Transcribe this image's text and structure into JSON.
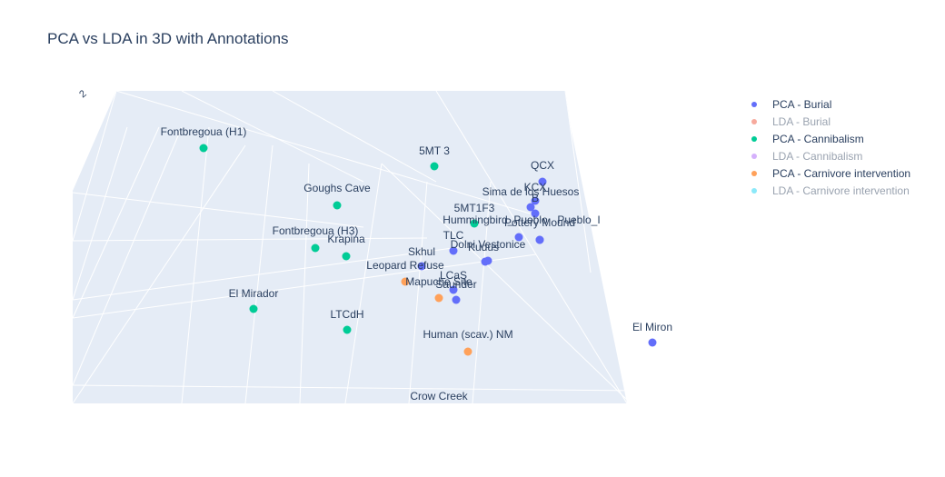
{
  "title": "PCA vs LDA in 3D with Annotations",
  "chart_data": {
    "type": "scatter",
    "title": "PCA vs LDA in 3D with Annotations",
    "axis_tick_visible": "2",
    "grid": true,
    "legend_placement": "top-right",
    "series": [
      {
        "name": "PCA - Burial",
        "color": "#636efa",
        "visible": true,
        "points": [
          {
            "label": "QCX"
          },
          {
            "label": "KCX"
          },
          {
            "label": "Sima de los Huesos"
          },
          {
            "label": "B"
          },
          {
            "label": "Hummingbird_Pueblo"
          },
          {
            "label": "Pueblo_I"
          },
          {
            "label": "Pottery Mound"
          },
          {
            "label": "TLC"
          },
          {
            "label": "Kudus"
          },
          {
            "label": "Dolni Vestonice"
          },
          {
            "label": "Skhul"
          },
          {
            "label": "LCaS"
          },
          {
            "label": "Saunder"
          },
          {
            "label": "El Miron"
          }
        ]
      },
      {
        "name": "LDA - Burial",
        "color": "#ef553b",
        "visible": false,
        "points": []
      },
      {
        "name": "PCA - Cannibalism",
        "color": "#00cc96",
        "visible": true,
        "points": [
          {
            "label": "Fontbregoua (H1)"
          },
          {
            "label": "5MT 3"
          },
          {
            "label": "Goughs Cave"
          },
          {
            "label": "5MT1F3"
          },
          {
            "label": "Fontbregoua (H3)"
          },
          {
            "label": "Krapina"
          },
          {
            "label": "El Mirador"
          },
          {
            "label": "LTCdH"
          }
        ]
      },
      {
        "name": "LDA - Cannibalism",
        "color": "#ab63fa",
        "visible": false,
        "points": []
      },
      {
        "name": "PCA - Carnivore intervention",
        "color": "#ffa15a",
        "visible": true,
        "points": [
          {
            "label": "Leopard Refuse"
          },
          {
            "label": "Mapuche Site"
          },
          {
            "label": "Human (scav.) NM"
          },
          {
            "label": "Crow Creek"
          }
        ]
      },
      {
        "name": "LDA - Carnivore intervention",
        "color": "#19d3f3",
        "visible": false,
        "points": []
      }
    ]
  },
  "legend": [
    {
      "label": "PCA - Burial",
      "color": "#636efa",
      "visible": true
    },
    {
      "label": "LDA - Burial",
      "color": "#ef553b",
      "visible": false
    },
    {
      "label": "PCA - Cannibalism",
      "color": "#00cc96",
      "visible": true
    },
    {
      "label": "LDA - Cannibalism",
      "color": "#ab63fa",
      "visible": false
    },
    {
      "label": "PCA - Carnivore intervention",
      "color": "#ffa15a",
      "visible": true
    },
    {
      "label": "LDA - Carnivore intervention",
      "color": "#19d3f3",
      "visible": false
    }
  ]
}
